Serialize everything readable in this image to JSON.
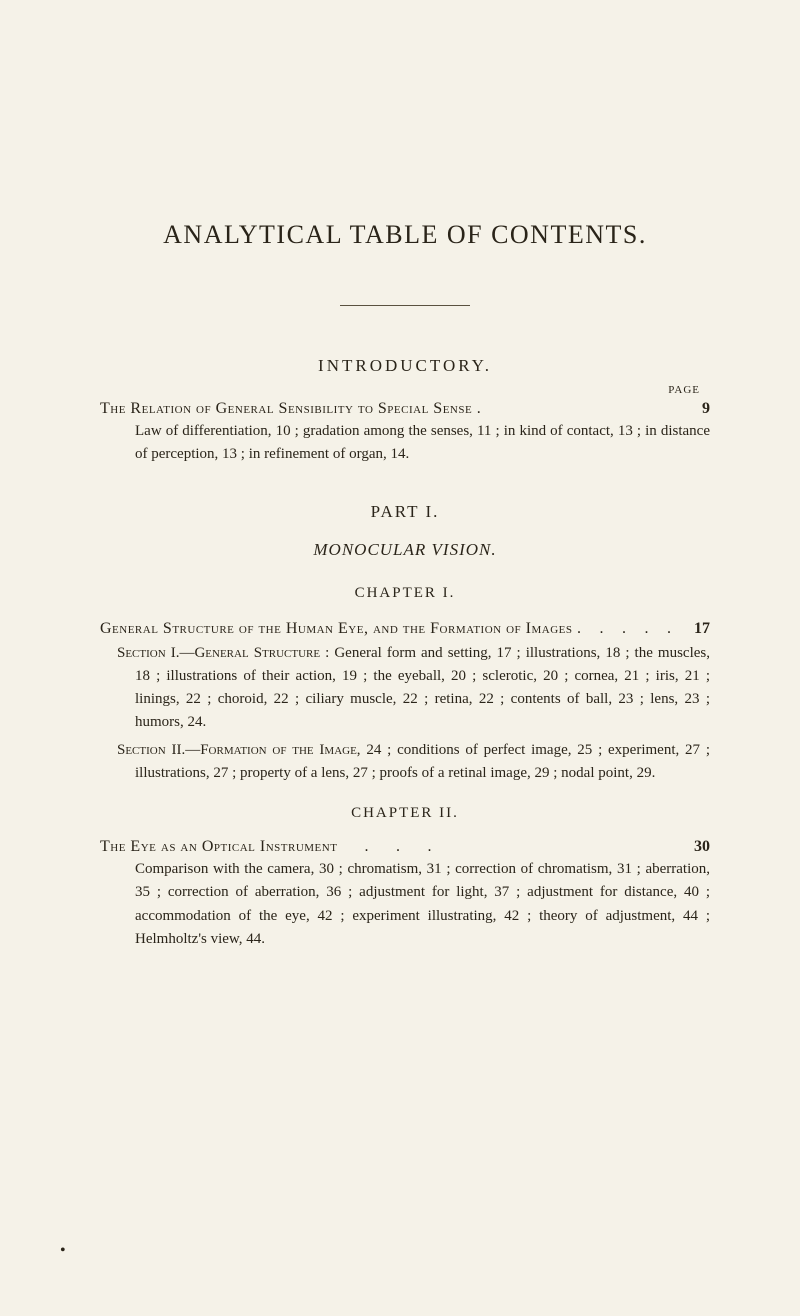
{
  "mainTitle": "ANALYTICAL TABLE OF CONTENTS.",
  "introductory": {
    "header": "INTRODUCTORY.",
    "pageLabel": "PAGE"
  },
  "entry1": {
    "title": "The Relation of General Sensibility to Special Sense .",
    "page": "9",
    "detail": "Law of differentiation, 10 ; gradation among the senses, 11 ; in kind of contact, 13 ; in distance of perception, 13 ; in refinement of organ, 14."
  },
  "part1": {
    "header": "PART I.",
    "subtitle": "MONOCULAR VISION."
  },
  "chapter1": {
    "header": "CHAPTER I."
  },
  "entry2": {
    "title": "General Structure of the Human Eye, and the Formation of Images .",
    "page": "17",
    "sectionA": {
      "label": "Section I.—General Structure",
      "text": " : General form and setting, 17 ; illustrations, 18 ; the muscles, 18 ; illustrations of their action, 19 ; the eyeball, 20 ; sclerotic, 20 ; cornea, 21 ; iris, 21 ; linings, 22 ; choroid, 22 ; ciliary muscle, 22 ; retina, 22 ; contents of ball, 23 ; lens, 23 ; humors, 24."
    },
    "sectionB": {
      "label": "Section II.—Formation of the Image",
      "text": ", 24 ; conditions of perfect image, 25 ; experiment, 27 ; illustrations, 27 ; property of a lens, 27 ; proofs of a retinal image, 29 ; nodal point, 29."
    }
  },
  "chapter2": {
    "header": "CHAPTER II."
  },
  "entry3": {
    "title": "The Eye as an Optical Instrument",
    "dots": "  .  .  .",
    "page": "30",
    "detail": "Comparison with the camera, 30 ; chromatism, 31 ; correction of chromatism, 31 ; aberration, 35 ; correction of aberration, 36 ; adjustment for light, 37 ; adjustment for distance, 40 ; accommodation of the eye, 42 ; experiment illustrating, 42 ; theory of adjustment, 44 ; Helmholtz's view, 44."
  }
}
